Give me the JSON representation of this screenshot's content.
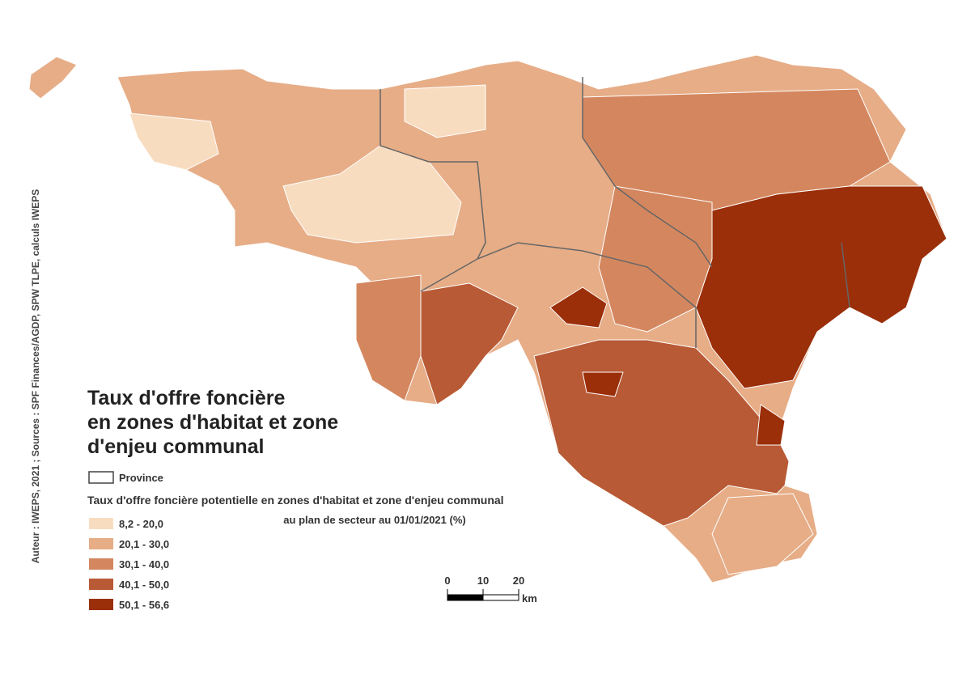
{
  "title_lines": [
    "Taux d'offre foncière",
    "en zones d'habitat et zone",
    "d'enjeu communal"
  ],
  "source": "Auteur : IWEPS, 2021 ; Sources : SPF Finances/AGDP, SPW TLPE, calculs IWEPS",
  "legend": {
    "province_label": "Province",
    "title_lines": [
      "Taux d'offre foncière potentielle en zones d'habitat et zone  d'enjeu communal",
      "au plan de secteur au 01/01/2021 (%)"
    ],
    "classes": [
      {
        "label": "8,2 - 20,0",
        "color": "#f8dcc0"
      },
      {
        "label": "20,1 - 30,0",
        "color": "#e6ad87"
      },
      {
        "label": "30,1 - 40,0",
        "color": "#d4875f"
      },
      {
        "label": "40,1 - 50,0",
        "color": "#b85a35"
      },
      {
        "label": "50,1 - 56,6",
        "color": "#9a2f0a"
      }
    ]
  },
  "scale_bar": {
    "ticks": [
      0,
      10,
      20
    ],
    "unit": "km"
  }
}
